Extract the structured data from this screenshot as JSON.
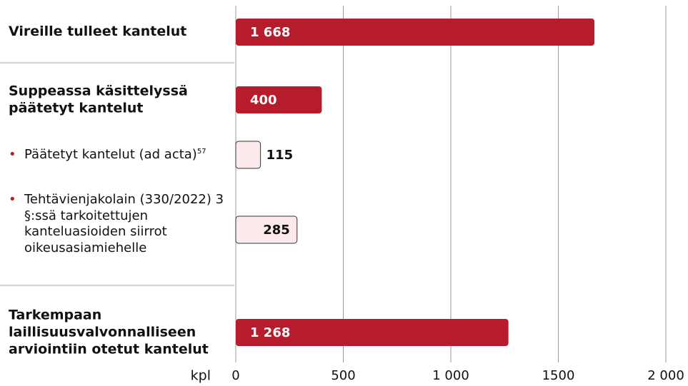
{
  "chart_data": {
    "type": "bar",
    "orientation": "horizontal",
    "categories": [
      "Vireille tulleet kantelut",
      "Suppeassa käsittelyssä päätetyt kantelut",
      "Päätetyt kantelut (ad acta)",
      "Tehtävienjakolain (330/2022) 3 §:ssä tarkoitettujen kanteluasioiden siirrot oikeusasiamiehelle",
      "Tarkempaan laillisuusvalvonnalliseen arviointiin otetut kantelut"
    ],
    "category_notes": [
      null,
      null,
      "57",
      null,
      null
    ],
    "sub_items": [
      false,
      false,
      true,
      true,
      false
    ],
    "values": [
      1668,
      400,
      115,
      285,
      1268
    ],
    "value_labels": [
      "1 668",
      "400",
      "115",
      "285",
      "1 268"
    ],
    "colors": [
      "#b71c2c",
      "#b71c2c",
      "#fbe9ec",
      "#fbe9ec",
      "#b71c2c"
    ],
    "xlim": [
      0,
      2000
    ],
    "xticks": [
      0,
      500,
      {
        "value": 1000,
        "label": "1 000"
      },
      1500,
      {
        "value": 2000,
        "label": "2 000"
      }
    ],
    "xlabel": "kpl",
    "grid": true
  }
}
